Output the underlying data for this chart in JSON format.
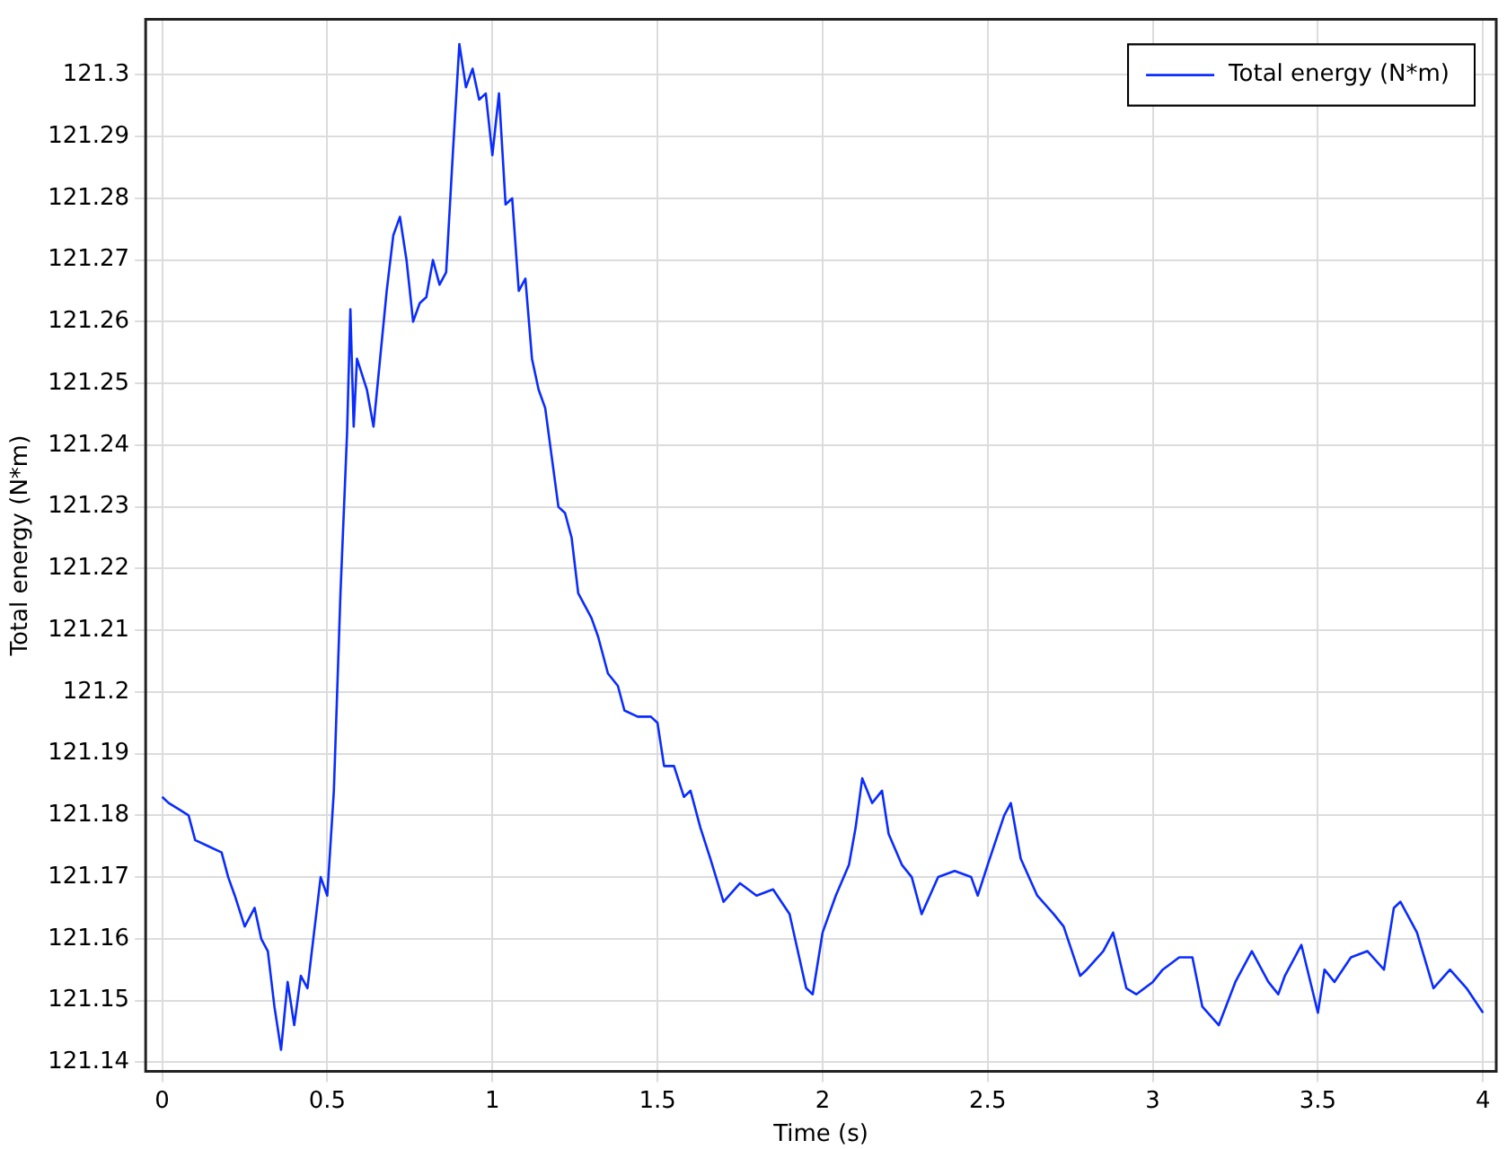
{
  "chart_data": {
    "type": "line",
    "xlabel": "Time (s)",
    "ylabel": "Total energy (N*m)",
    "legend": "top right",
    "grid": true,
    "marker": "none",
    "line_style": "solid",
    "xlim": [
      -0.05,
      4.04
    ],
    "xticks": [
      0,
      0.5,
      1,
      1.5,
      2,
      2.5,
      3,
      3.5,
      4
    ],
    "ylim": [
      121.1385,
      121.309
    ],
    "yticks": [
      121.14,
      121.15,
      121.16,
      121.17,
      121.18,
      121.19,
      121.2,
      121.21,
      121.22,
      121.23,
      121.24,
      121.25,
      121.26,
      121.27,
      121.28,
      121.29,
      121.3
    ],
    "series": [
      {
        "name": "Total energy (N*m)",
        "color": "#0a2cff",
        "x": [
          0,
          0.02,
          0.05,
          0.08,
          0.1,
          0.14,
          0.18,
          0.2,
          0.22,
          0.25,
          0.28,
          0.3,
          0.32,
          0.34,
          0.36,
          0.38,
          0.4,
          0.42,
          0.44,
          0.46,
          0.48,
          0.5,
          0.52,
          0.54,
          0.56,
          0.57,
          0.58,
          0.59,
          0.62,
          0.64,
          0.66,
          0.68,
          0.7,
          0.72,
          0.74,
          0.76,
          0.78,
          0.8,
          0.82,
          0.84,
          0.86,
          0.88,
          0.9,
          0.92,
          0.94,
          0.96,
          0.98,
          1,
          1.02,
          1.04,
          1.06,
          1.08,
          1.1,
          1.12,
          1.14,
          1.16,
          1.18,
          1.2,
          1.22,
          1.24,
          1.26,
          1.3,
          1.32,
          1.35,
          1.38,
          1.4,
          1.44,
          1.48,
          1.5,
          1.52,
          1.55,
          1.58,
          1.6,
          1.63,
          1.66,
          1.7,
          1.75,
          1.8,
          1.85,
          1.9,
          1.95,
          1.97,
          2,
          2.04,
          2.08,
          2.1,
          2.12,
          2.15,
          2.18,
          2.2,
          2.24,
          2.27,
          2.3,
          2.35,
          2.4,
          2.45,
          2.47,
          2.5,
          2.55,
          2.57,
          2.6,
          2.65,
          2.7,
          2.73,
          2.78,
          2.8,
          2.85,
          2.88,
          2.92,
          2.95,
          3,
          3.03,
          3.08,
          3.12,
          3.15,
          3.2,
          3.25,
          3.3,
          3.35,
          3.38,
          3.4,
          3.45,
          3.5,
          3.52,
          3.55,
          3.6,
          3.65,
          3.7,
          3.73,
          3.75,
          3.8,
          3.85,
          3.9,
          3.95,
          4
        ],
        "values": [
          121.183,
          121.182,
          121.181,
          121.18,
          121.176,
          121.175,
          121.174,
          121.17,
          121.167,
          121.162,
          121.165,
          121.16,
          121.158,
          121.149,
          121.142,
          121.153,
          121.146,
          121.154,
          121.152,
          121.161,
          121.17,
          121.167,
          121.184,
          121.216,
          121.242,
          121.262,
          121.243,
          121.254,
          121.249,
          121.243,
          121.254,
          121.265,
          121.274,
          121.277,
          121.27,
          121.26,
          121.263,
          121.264,
          121.27,
          121.266,
          121.268,
          121.287,
          121.305,
          121.298,
          121.301,
          121.296,
          121.297,
          121.287,
          121.297,
          121.279,
          121.28,
          121.265,
          121.267,
          121.254,
          121.249,
          121.246,
          121.238,
          121.23,
          121.229,
          121.225,
          121.216,
          121.212,
          121.209,
          121.203,
          121.201,
          121.197,
          121.196,
          121.196,
          121.195,
          121.188,
          121.188,
          121.183,
          121.184,
          121.178,
          121.173,
          121.166,
          121.169,
          121.167,
          121.168,
          121.164,
          121.152,
          121.151,
          121.161,
          121.167,
          121.172,
          121.178,
          121.186,
          121.182,
          121.184,
          121.177,
          121.172,
          121.17,
          121.164,
          121.17,
          121.171,
          121.17,
          121.167,
          121.172,
          121.18,
          121.182,
          121.173,
          121.167,
          121.164,
          121.162,
          121.154,
          121.155,
          121.158,
          121.161,
          121.152,
          121.151,
          121.153,
          121.155,
          121.157,
          121.157,
          121.149,
          121.146,
          121.153,
          121.158,
          121.153,
          121.151,
          121.154,
          121.159,
          121.148,
          121.155,
          121.153,
          121.157,
          121.158,
          121.155,
          121.165,
          121.166,
          121.161,
          121.152,
          121.155,
          121.152,
          121.148
        ]
      }
    ]
  }
}
